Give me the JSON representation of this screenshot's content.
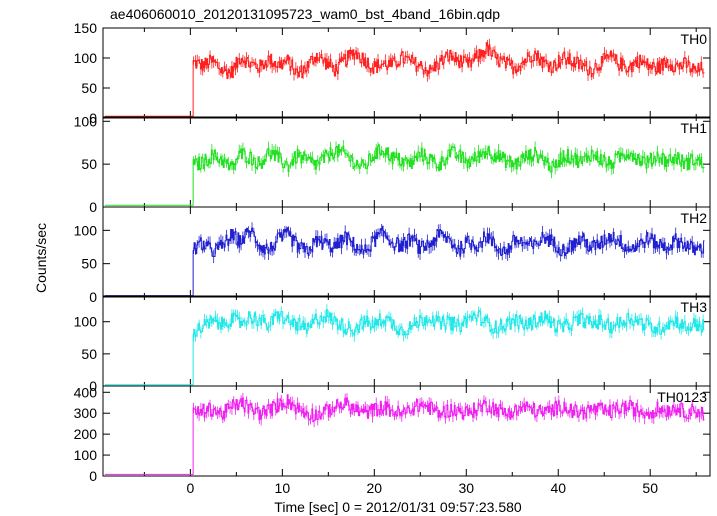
{
  "chart_data": {
    "type": "line",
    "title": "ae406060010_20120131095723_wam0_bst_4band_16bin.qdp",
    "xlabel": "Time [sec] 0 = 2012/01/31 09:57:23.580",
    "ylabel": "Counts/sec",
    "xlim": [
      -9.5,
      56.5
    ],
    "x_ticks": [
      0,
      10,
      20,
      30,
      40,
      50
    ],
    "rise_time": 0.3,
    "panels": [
      {
        "name": "TH0",
        "color": "#ff2020",
        "ylim": [
          0,
          150
        ],
        "y_ticks": [
          0,
          50,
          100,
          150
        ],
        "pre_level": 3,
        "y": [
          92,
          88,
          95,
          80,
          75,
          102,
          90,
          85,
          98,
          88,
          95,
          72,
          86,
          105,
          92,
          80,
          96,
          110,
          98,
          84,
          90,
          88,
          100,
          94,
          86,
          78,
          92,
          104,
          96,
          88,
          102,
          116,
          98,
          90,
          84,
          96,
          108,
          92,
          86,
          100,
          94,
          88,
          80,
          92,
          102,
          90,
          84,
          96,
          88,
          82,
          94,
          86,
          90,
          78,
          84
        ]
      },
      {
        "name": "TH1",
        "color": "#20e020",
        "ylim": [
          0,
          105
        ],
        "y_ticks": [
          0,
          50,
          100
        ],
        "pre_level": 2,
        "y": [
          48,
          52,
          60,
          55,
          45,
          62,
          58,
          50,
          64,
          56,
          48,
          60,
          54,
          50,
          58,
          66,
          62,
          52,
          46,
          60,
          68,
          58,
          54,
          50,
          62,
          56,
          48,
          64,
          60,
          52,
          58,
          66,
          60,
          54,
          50,
          58,
          62,
          56,
          44,
          60,
          58,
          52,
          62,
          56,
          50,
          58,
          64,
          56,
          52,
          60,
          54,
          58,
          50,
          56,
          48
        ]
      },
      {
        "name": "TH2",
        "color": "#2020d0",
        "ylim": [
          0,
          135
        ],
        "y_ticks": [
          0,
          50,
          100
        ],
        "pre_level": 2,
        "y": [
          72,
          80,
          68,
          76,
          92,
          84,
          100,
          78,
          70,
          86,
          94,
          76,
          68,
          84,
          80,
          74,
          90,
          78,
          66,
          84,
          96,
          82,
          76,
          88,
          72,
          80,
          94,
          86,
          70,
          82,
          78,
          92,
          74,
          68,
          86,
          80,
          76,
          90,
          82,
          70,
          78,
          88,
          74,
          80,
          92,
          84,
          72,
          78,
          88,
          80,
          74,
          86,
          78,
          70,
          76
        ]
      },
      {
        "name": "TH3",
        "color": "#20e8e8",
        "ylim": [
          0,
          140
        ],
        "y_ticks": [
          0,
          50,
          100
        ],
        "pre_level": 2,
        "y": [
          84,
          92,
          100,
          96,
          104,
          98,
          108,
          102,
          94,
          112,
          100,
          96,
          86,
          104,
          110,
          100,
          92,
          88,
          100,
          94,
          106,
          98,
          86,
          92,
          102,
          108,
          96,
          100,
          92,
          104,
          110,
          98,
          90,
          96,
          102,
          94,
          100,
          108,
          96,
          90,
          98,
          104,
          96,
          100,
          92,
          98,
          106,
          100,
          94,
          88,
          96,
          102,
          90,
          96,
          92
        ]
      },
      {
        "name": "TH0123",
        "color": "#f020f0",
        "ylim": [
          0,
          430
        ],
        "y_ticks": [
          0,
          100,
          200,
          300,
          400
        ],
        "pre_level": 8,
        "y": [
          300,
          310,
          320,
          295,
          330,
          350,
          320,
          300,
          315,
          340,
          360,
          320,
          300,
          290,
          310,
          330,
          345,
          320,
          300,
          315,
          330,
          310,
          295,
          320,
          340,
          325,
          300,
          315,
          310,
          300,
          325,
          340,
          320,
          300,
          310,
          330,
          315,
          300,
          320,
          335,
          310,
          300,
          320,
          315,
          305,
          325,
          330,
          310,
          300,
          320,
          315,
          325,
          305,
          315,
          295
        ]
      }
    ]
  }
}
